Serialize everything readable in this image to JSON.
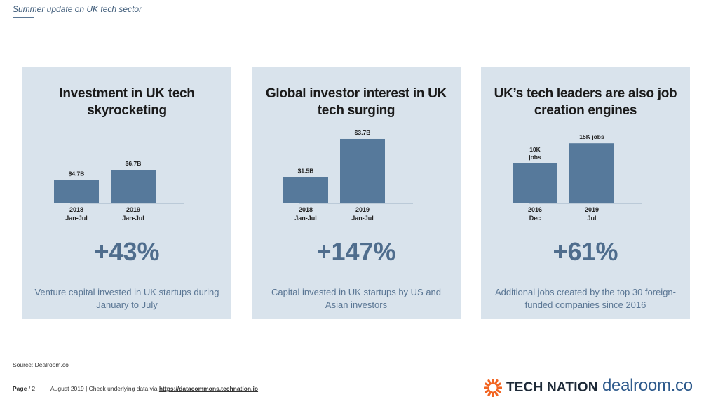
{
  "header": {
    "title": "Summer update on UK tech sector"
  },
  "panels": [
    {
      "title": "Investment in UK tech skyrocketing",
      "big_number": "+43%",
      "description": "Venture capital invested in UK startups during January to July",
      "chart_data": {
        "type": "bar",
        "categories": [
          [
            "2018",
            "Jan-Jul"
          ],
          [
            "2019",
            "Jan-Jul"
          ]
        ],
        "values": [
          4.7,
          6.7
        ],
        "value_labels": [
          [
            "$4.7B"
          ],
          [
            "$6.7B"
          ]
        ],
        "ylim": [
          0,
          20
        ],
        "bar_color": "#56799b"
      }
    },
    {
      "title": "Global investor interest in UK tech surging",
      "big_number": "+147%",
      "description": "Capital invested in UK startups by US and Asian investors",
      "chart_data": {
        "type": "bar",
        "categories": [
          [
            "2018",
            "Jan-Jul"
          ],
          [
            "2019",
            "Jan-Jul"
          ]
        ],
        "values": [
          1.5,
          3.7
        ],
        "value_labels": [
          [
            "$1.5B"
          ],
          [
            "$3.7B"
          ]
        ],
        "ylim": [
          0,
          5.75
        ],
        "bar_color": "#56799b"
      }
    },
    {
      "title": "UK’s tech leaders are also job creation engines",
      "big_number": "+61%",
      "description": "Additional jobs created by the top 30 foreign-funded companies since 2016",
      "chart_data": {
        "type": "bar",
        "categories": [
          [
            "2016",
            "Dec"
          ],
          [
            "2019",
            "Jul"
          ]
        ],
        "values": [
          10,
          15
        ],
        "value_labels": [
          [
            "10K",
            "jobs"
          ],
          [
            "15K jobs"
          ]
        ],
        "ylim": [
          0,
          25
        ],
        "bar_color": "#56799b"
      }
    }
  ],
  "source": "Source: Dealroom.co",
  "footer": {
    "page_label": "Page",
    "page_number": "/ 2",
    "meta_text": "August 2019 | Check underlying data via ",
    "link_text": "https://datacommons.technation.io"
  },
  "logos": {
    "tech_nation": "TECH NATION",
    "dealroom": "dealroom.co",
    "tech_nation_color": "#f26522"
  }
}
